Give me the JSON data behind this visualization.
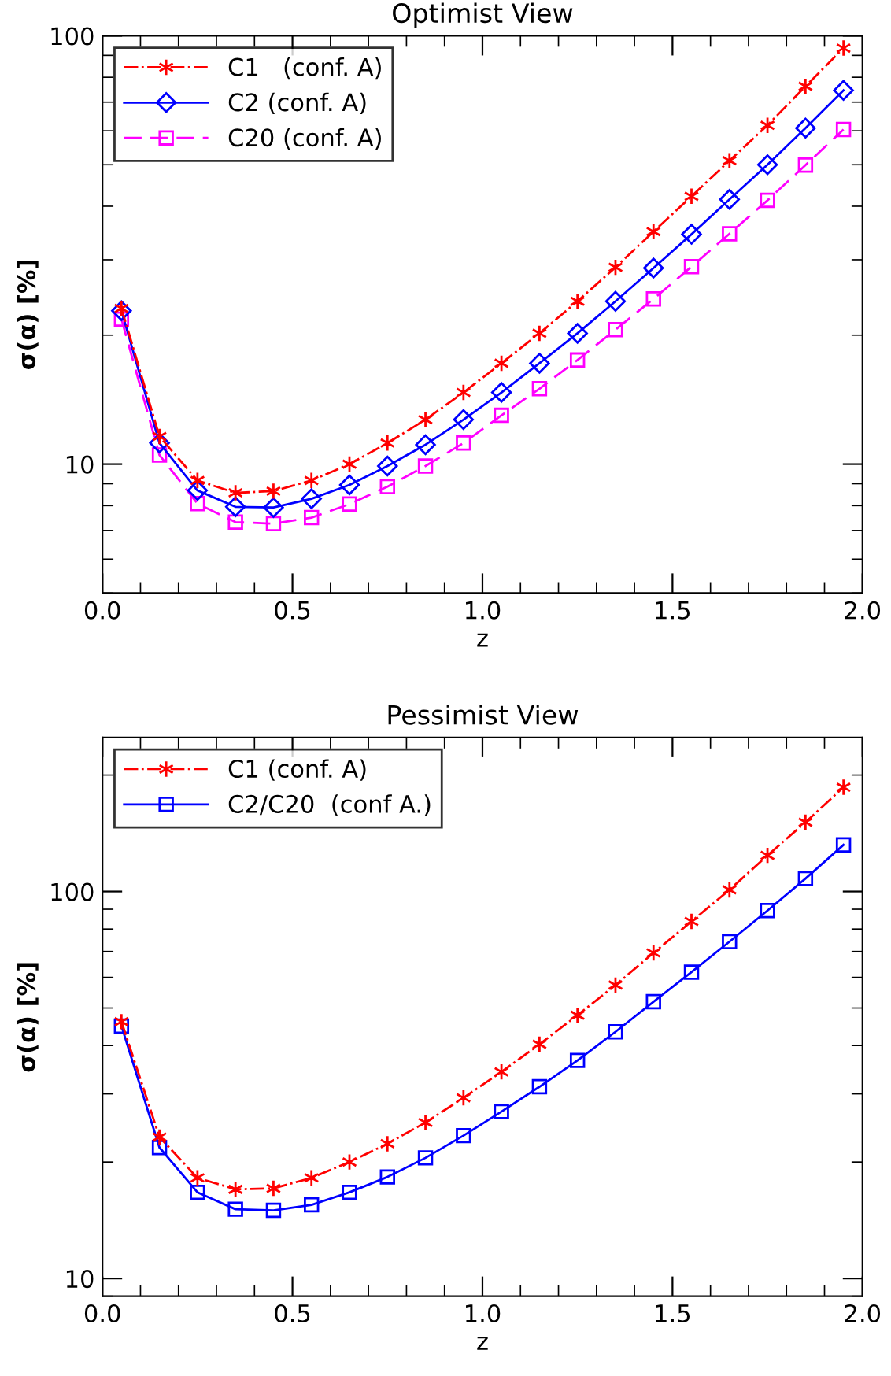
{
  "chart_data": [
    {
      "type": "line",
      "title": "Optimist View",
      "xlabel": "z",
      "ylabel": "σ(α) [%]",
      "log": "y",
      "legend": "top left",
      "grid": false,
      "xlim": [
        0.0,
        2.0
      ],
      "xticks": [
        {
          "value": 0.0,
          "label": "0.0"
        },
        {
          "value": 0.5,
          "label": "0.5"
        },
        {
          "value": 1.0,
          "label": "1.0"
        },
        {
          "value": 1.5,
          "label": "1.5"
        },
        {
          "value": 2.0,
          "label": "2.0"
        }
      ],
      "ylim": [
        5,
        100
      ],
      "yticks": [
        10,
        100
      ],
      "x": [
        0.05,
        0.15,
        0.25,
        0.35,
        0.45,
        0.55,
        0.65,
        0.75,
        0.85,
        0.95,
        1.05,
        1.15,
        1.25,
        1.35,
        1.45,
        1.55,
        1.65,
        1.75,
        1.85,
        1.95
      ],
      "series": [
        {
          "name": "C1   (conf. A)",
          "color": "#ff0000",
          "marker": "cross",
          "line_style": "dashdot",
          "values": [
            23.1,
            11.6,
            9.16,
            8.57,
            8.65,
            9.16,
            10.0,
            11.2,
            12.7,
            14.7,
            17.2,
            20.2,
            24.0,
            28.8,
            34.9,
            42.2,
            51.1,
            61.8,
            76.2,
            93.6
          ]
        },
        {
          "name": "C2 (conf. A)",
          "color": "#0000ff",
          "marker": "diamond",
          "line_style": "solid",
          "values": [
            22.8,
            11.2,
            8.68,
            7.95,
            7.92,
            8.3,
            8.94,
            9.9,
            11.1,
            12.7,
            14.7,
            17.2,
            20.2,
            24.0,
            28.7,
            34.4,
            41.5,
            50.0,
            60.9,
            74.6
          ]
        },
        {
          "name": "C20 (conf. A)",
          "color": "#ff00ff",
          "marker": "square",
          "line_style": "dashed",
          "values": [
            21.8,
            10.5,
            8.09,
            7.32,
            7.26,
            7.5,
            8.07,
            8.86,
            9.9,
            11.2,
            13.0,
            15.0,
            17.5,
            20.6,
            24.3,
            28.9,
            34.5,
            41.3,
            49.9,
            60.4
          ]
        }
      ]
    },
    {
      "type": "line",
      "title": "Pessimist View",
      "xlabel": "z",
      "ylabel": "σ(α) [%]",
      "log": "y",
      "legend": "top left",
      "grid": false,
      "xlim": [
        0.0,
        2.0
      ],
      "xticks": [
        {
          "value": 0.0,
          "label": "0.0"
        },
        {
          "value": 0.5,
          "label": "0.5"
        },
        {
          "value": 1.0,
          "label": "1.0"
        },
        {
          "value": 1.5,
          "label": "1.5"
        },
        {
          "value": 2.0,
          "label": "2.0"
        }
      ],
      "ylim": [
        9,
        250
      ],
      "yticks": [
        10,
        100
      ],
      "x": [
        0.05,
        0.15,
        0.25,
        0.35,
        0.45,
        0.55,
        0.65,
        0.75,
        0.85,
        0.95,
        1.05,
        1.15,
        1.25,
        1.35,
        1.45,
        1.55,
        1.65,
        1.75,
        1.85,
        1.95
      ],
      "series": [
        {
          "name": "C1 (conf. A)",
          "color": "#ff0000",
          "marker": "cross",
          "line_style": "dashdot",
          "values": [
            46.1,
            23.2,
            18.2,
            17.0,
            17.1,
            18.2,
            20.0,
            22.3,
            25.3,
            29.3,
            34.2,
            40.3,
            47.9,
            57.3,
            69.4,
            83.7,
            101,
            124,
            151,
            186
          ]
        },
        {
          "name": "C2/C20  (conf A.)",
          "color": "#0000ff",
          "marker": "square",
          "line_style": "solid",
          "values": [
            44.9,
            21.8,
            16.7,
            15.1,
            15.0,
            15.5,
            16.7,
            18.3,
            20.5,
            23.4,
            27.0,
            31.3,
            36.6,
            43.4,
            51.9,
            61.9,
            74.2,
            89.3,
            108,
            132
          ]
        }
      ]
    }
  ]
}
